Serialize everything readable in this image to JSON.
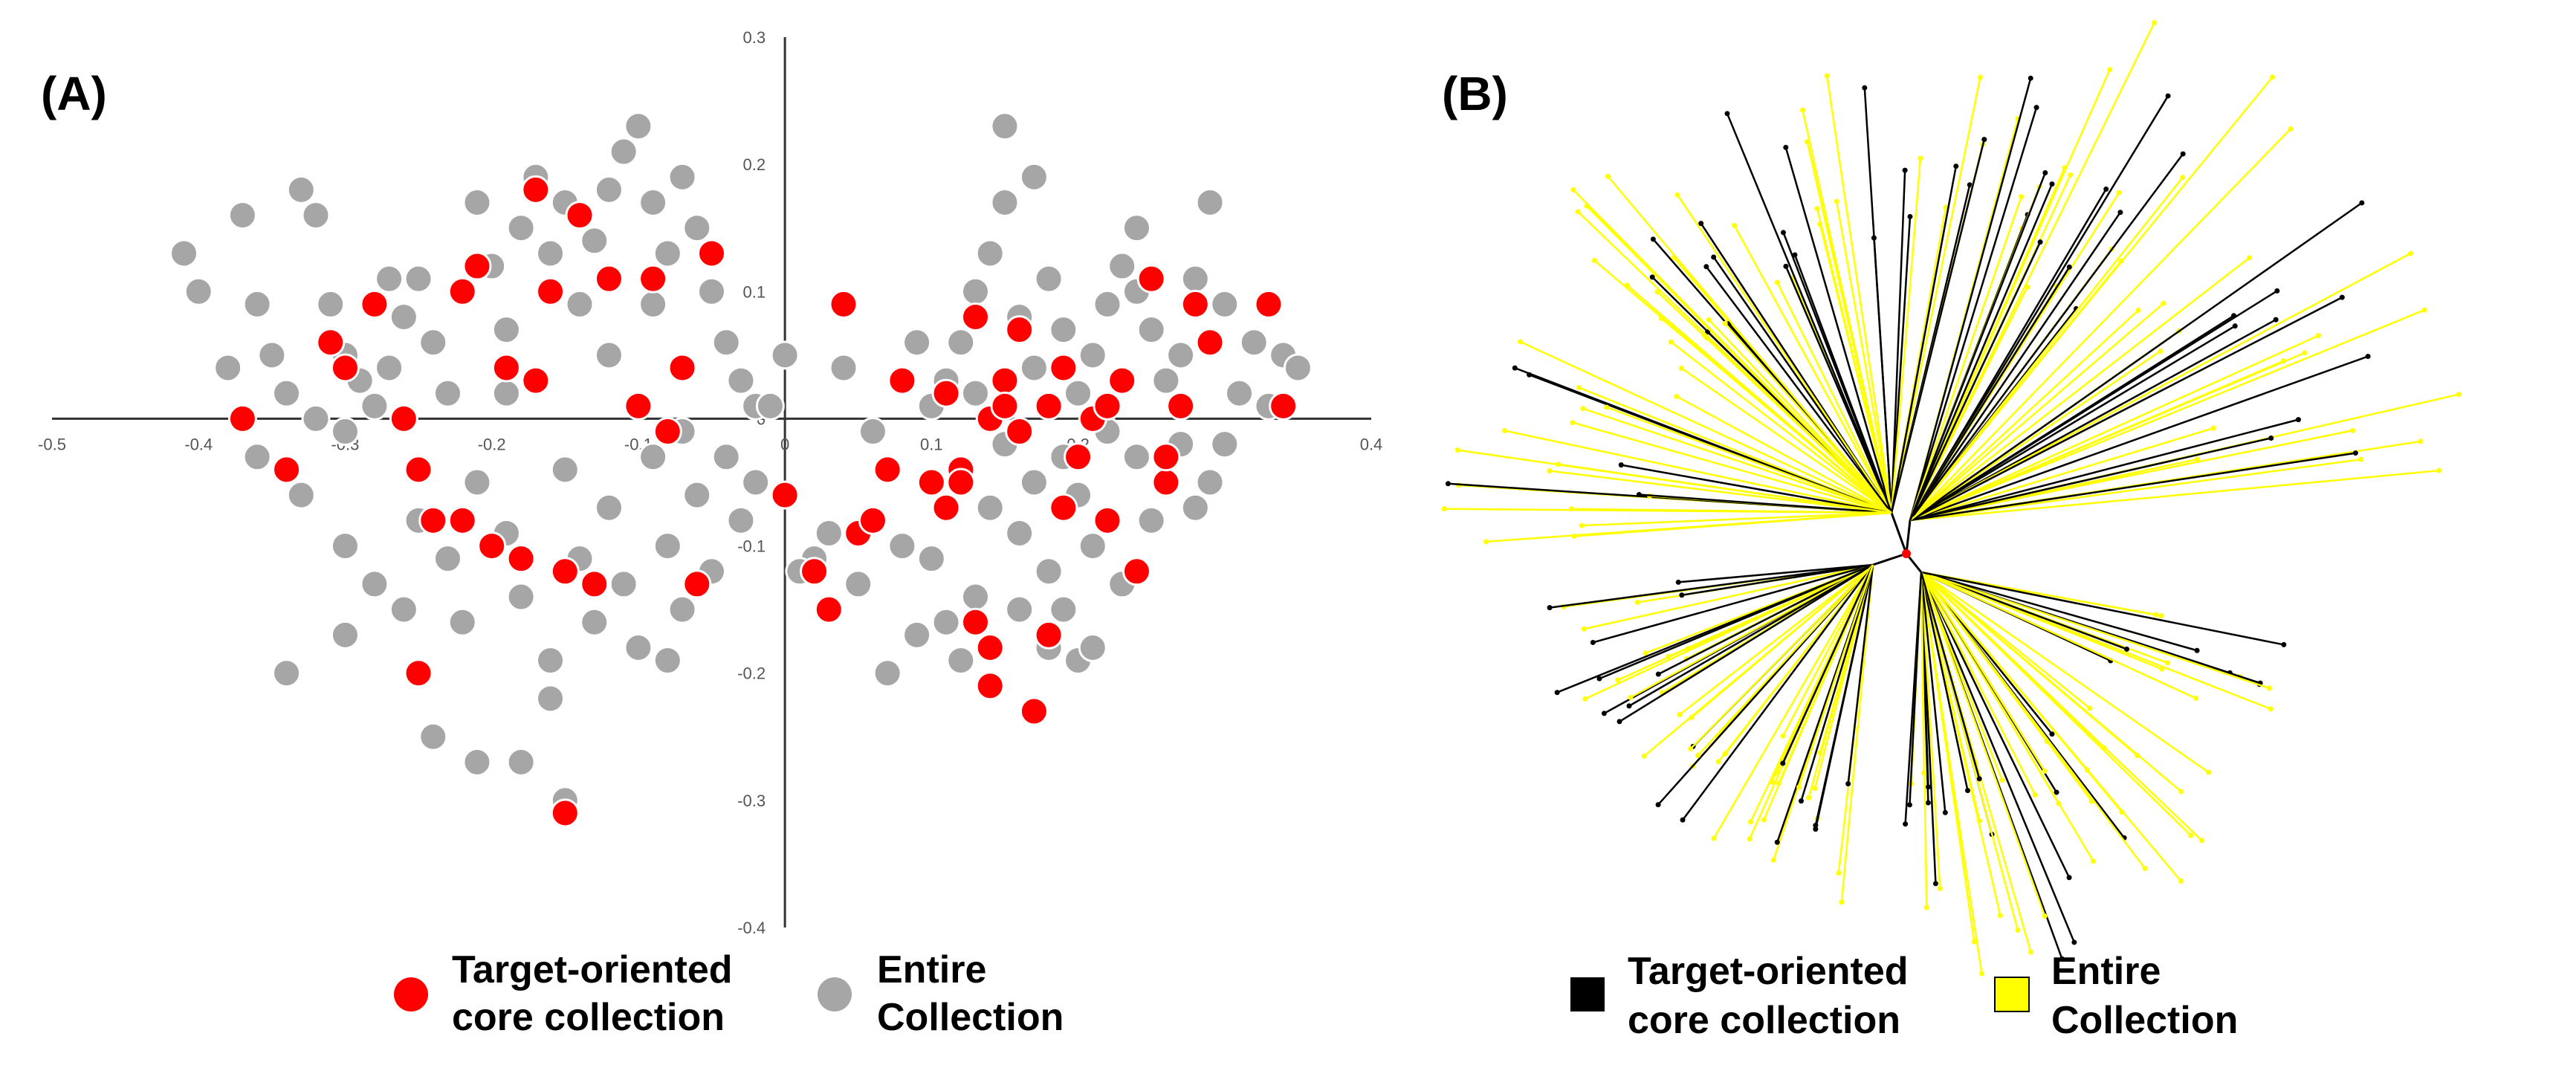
{
  "panels": [
    {
      "label": "(A)"
    },
    {
      "label": "(B)"
    }
  ],
  "chart_data": [
    {
      "type": "scatter",
      "title": "",
      "xlabel": "",
      "ylabel": "",
      "xlim": [
        -0.5,
        0.4
      ],
      "ylim": [
        -0.4,
        0.3
      ],
      "x_ticks": [
        -0.5,
        -0.4,
        -0.3,
        -0.2,
        -0.1,
        0,
        0.1,
        0.2,
        0.3,
        0.4
      ],
      "x_tick_labels": [
        "-0.5",
        "-0.4",
        "-0.3",
        "-0.2",
        "-0.1",
        "0",
        "0.1",
        "0.2",
        "0.3",
        "0.4"
      ],
      "y_ticks": [
        0.3,
        0.2,
        0.1,
        0,
        -0.1,
        -0.2,
        -0.3,
        -0.4
      ],
      "y_tick_labels": [
        "0.3",
        "0.2",
        "0.1",
        "0",
        "-0.1",
        "-0.2",
        "-0.3",
        "-0.4"
      ],
      "grid": false,
      "series": [
        {
          "name": "Entire Collection",
          "color": "#a6a6a6",
          "points": [
            [
              -0.41,
              0.13
            ],
            [
              -0.4,
              0.1
            ],
            [
              -0.37,
              0.16
            ],
            [
              -0.36,
              0.09
            ],
            [
              -0.35,
              0.05
            ],
            [
              -0.33,
              0.18
            ],
            [
              -0.32,
              0.16
            ],
            [
              -0.31,
              0.09
            ],
            [
              -0.3,
              0.05
            ],
            [
              -0.29,
              0.03
            ],
            [
              -0.34,
              0.02
            ],
            [
              -0.32,
              0.0
            ],
            [
              -0.3,
              -0.01
            ],
            [
              -0.28,
              0.01
            ],
            [
              -0.27,
              0.04
            ],
            [
              -0.26,
              0.08
            ],
            [
              -0.25,
              0.11
            ],
            [
              -0.24,
              0.06
            ],
            [
              -0.23,
              0.02
            ],
            [
              -0.22,
              0.1
            ],
            [
              -0.21,
              0.17
            ],
            [
              -0.2,
              0.12
            ],
            [
              -0.19,
              0.07
            ],
            [
              -0.18,
              0.15
            ],
            [
              -0.17,
              0.19
            ],
            [
              -0.16,
              0.13
            ],
            [
              -0.15,
              0.17
            ],
            [
              -0.14,
              0.09
            ],
            [
              -0.13,
              0.14
            ],
            [
              -0.12,
              0.18
            ],
            [
              -0.11,
              0.21
            ],
            [
              -0.1,
              0.23
            ],
            [
              -0.09,
              0.17
            ],
            [
              -0.08,
              0.13
            ],
            [
              -0.07,
              0.19
            ],
            [
              -0.06,
              0.15
            ],
            [
              -0.05,
              0.1
            ],
            [
              -0.04,
              0.06
            ],
            [
              -0.03,
              0.03
            ],
            [
              -0.02,
              0.01
            ],
            [
              -0.36,
              -0.03
            ],
            [
              -0.33,
              -0.06
            ],
            [
              -0.3,
              -0.1
            ],
            [
              -0.28,
              -0.13
            ],
            [
              -0.26,
              -0.15
            ],
            [
              -0.25,
              -0.08
            ],
            [
              -0.23,
              -0.11
            ],
            [
              -0.22,
              -0.16
            ],
            [
              -0.21,
              -0.05
            ],
            [
              -0.19,
              -0.09
            ],
            [
              -0.18,
              -0.14
            ],
            [
              -0.16,
              -0.19
            ],
            [
              -0.15,
              -0.04
            ],
            [
              -0.14,
              -0.11
            ],
            [
              -0.13,
              -0.16
            ],
            [
              -0.12,
              -0.07
            ],
            [
              -0.11,
              -0.13
            ],
            [
              -0.1,
              -0.18
            ],
            [
              -0.09,
              -0.03
            ],
            [
              -0.08,
              -0.1
            ],
            [
              -0.07,
              -0.15
            ],
            [
              -0.06,
              -0.06
            ],
            [
              -0.05,
              -0.12
            ],
            [
              -0.04,
              -0.03
            ],
            [
              -0.03,
              -0.08
            ],
            [
              -0.34,
              -0.2
            ],
            [
              -0.3,
              -0.17
            ],
            [
              -0.24,
              -0.25
            ],
            [
              -0.21,
              -0.27
            ],
            [
              -0.18,
              -0.27
            ],
            [
              -0.16,
              -0.22
            ],
            [
              -0.15,
              -0.3
            ],
            [
              -0.08,
              -0.19
            ],
            [
              -0.38,
              0.04
            ],
            [
              -0.27,
              0.11
            ],
            [
              -0.19,
              0.02
            ],
            [
              -0.12,
              0.05
            ],
            [
              -0.09,
              0.09
            ],
            [
              -0.07,
              -0.01
            ],
            [
              -0.02,
              -0.05
            ],
            [
              0.04,
              0.04
            ],
            [
              0.06,
              -0.01
            ],
            [
              0.07,
              -0.04
            ],
            [
              0.08,
              -0.1
            ],
            [
              0.09,
              -0.17
            ],
            [
              0.1,
              0.01
            ],
            [
              0.11,
              0.03
            ],
            [
              0.12,
              0.06
            ],
            [
              0.13,
              0.1
            ],
            [
              0.14,
              0.13
            ],
            [
              0.15,
              0.17
            ],
            [
              0.15,
              0.23
            ],
            [
              0.16,
              0.08
            ],
            [
              0.17,
              0.04
            ],
            [
              0.17,
              0.19
            ],
            [
              0.18,
              0.11
            ],
            [
              0.19,
              0.07
            ],
            [
              0.2,
              0.02
            ],
            [
              0.21,
              0.05
            ],
            [
              0.22,
              0.09
            ],
            [
              0.23,
              0.12
            ],
            [
              0.24,
              0.15
            ],
            [
              0.25,
              0.07
            ],
            [
              0.26,
              0.03
            ],
            [
              0.27,
              0.05
            ],
            [
              0.28,
              0.11
            ],
            [
              0.29,
              0.17
            ],
            [
              0.3,
              0.09
            ],
            [
              0.31,
              0.02
            ],
            [
              0.32,
              0.06
            ],
            [
              0.33,
              0.01
            ],
            [
              0.34,
              0.05
            ],
            [
              0.35,
              0.04
            ],
            [
              0.12,
              -0.04
            ],
            [
              0.14,
              -0.07
            ],
            [
              0.15,
              -0.02
            ],
            [
              0.16,
              -0.09
            ],
            [
              0.17,
              -0.05
            ],
            [
              0.18,
              -0.12
            ],
            [
              0.19,
              -0.03
            ],
            [
              0.2,
              -0.06
            ],
            [
              0.21,
              -0.1
            ],
            [
              0.22,
              -0.01
            ],
            [
              0.23,
              -0.13
            ],
            [
              0.24,
              -0.03
            ],
            [
              0.25,
              -0.08
            ],
            [
              0.26,
              -0.05
            ],
            [
              0.27,
              -0.02
            ],
            [
              0.28,
              -0.07
            ],
            [
              0.29,
              -0.05
            ],
            [
              0.3,
              -0.02
            ],
            [
              0.1,
              -0.11
            ],
            [
              0.11,
              -0.16
            ],
            [
              0.12,
              -0.19
            ],
            [
              0.13,
              -0.14
            ],
            [
              0.16,
              -0.15
            ],
            [
              0.18,
              -0.18
            ],
            [
              0.19,
              -0.15
            ],
            [
              0.2,
              -0.19
            ],
            [
              0.21,
              -0.18
            ],
            [
              0.07,
              -0.2
            ],
            [
              0.02,
              -0.11
            ],
            [
              0.03,
              -0.09
            ],
            [
              0.05,
              -0.13
            ],
            [
              0.0,
              0.05
            ],
            [
              -0.01,
              0.01
            ],
            [
              0.01,
              -0.12
            ],
            [
              0.09,
              0.06
            ],
            [
              0.13,
              0.02
            ],
            [
              0.24,
              0.1
            ]
          ]
        },
        {
          "name": "Target-oriented core collection",
          "color": "#ff0000",
          "points": [
            [
              -0.37,
              0.0
            ],
            [
              -0.34,
              -0.04
            ],
            [
              -0.31,
              0.06
            ],
            [
              -0.3,
              0.04
            ],
            [
              -0.28,
              0.09
            ],
            [
              -0.26,
              0.0
            ],
            [
              -0.25,
              -0.04
            ],
            [
              -0.25,
              -0.2
            ],
            [
              -0.24,
              -0.08
            ],
            [
              -0.22,
              0.1
            ],
            [
              -0.21,
              0.12
            ],
            [
              -0.2,
              -0.1
            ],
            [
              -0.19,
              0.04
            ],
            [
              -0.18,
              -0.11
            ],
            [
              -0.17,
              0.18
            ],
            [
              -0.17,
              0.03
            ],
            [
              -0.16,
              0.1
            ],
            [
              -0.15,
              -0.12
            ],
            [
              -0.14,
              0.16
            ],
            [
              -0.13,
              -0.13
            ],
            [
              -0.15,
              -0.31
            ],
            [
              -0.12,
              0.11
            ],
            [
              -0.1,
              0.01
            ],
            [
              -0.09,
              0.11
            ],
            [
              -0.08,
              -0.01
            ],
            [
              -0.07,
              0.04
            ],
            [
              -0.06,
              -0.13
            ],
            [
              -0.05,
              0.13
            ],
            [
              0.0,
              -0.06
            ],
            [
              0.02,
              -0.12
            ],
            [
              0.03,
              -0.15
            ],
            [
              0.04,
              0.09
            ],
            [
              0.05,
              -0.09
            ],
            [
              0.06,
              -0.08
            ],
            [
              0.07,
              -0.04
            ],
            [
              0.08,
              0.03
            ],
            [
              0.1,
              -0.05
            ],
            [
              0.11,
              0.02
            ],
            [
              0.12,
              -0.04
            ],
            [
              0.13,
              0.08
            ],
            [
              0.13,
              -0.16
            ],
            [
              0.14,
              -0.18
            ],
            [
              0.14,
              -0.21
            ],
            [
              0.15,
              0.03
            ],
            [
              0.16,
              0.07
            ],
            [
              0.16,
              -0.01
            ],
            [
              0.17,
              -0.23
            ],
            [
              0.18,
              0.01
            ],
            [
              0.18,
              -0.17
            ],
            [
              0.19,
              0.04
            ],
            [
              0.2,
              -0.03
            ],
            [
              0.21,
              0.0
            ],
            [
              0.22,
              -0.08
            ],
            [
              0.23,
              0.03
            ],
            [
              0.24,
              -0.12
            ],
            [
              0.25,
              0.11
            ],
            [
              0.26,
              -0.05
            ],
            [
              0.26,
              -0.03
            ],
            [
              0.27,
              0.01
            ],
            [
              0.28,
              0.09
            ],
            [
              0.29,
              0.06
            ],
            [
              0.33,
              0.09
            ],
            [
              0.34,
              0.01
            ],
            [
              0.14,
              0.0
            ],
            [
              0.11,
              -0.07
            ],
            [
              0.22,
              0.01
            ],
            [
              -0.22,
              -0.08
            ],
            [
              0.12,
              -0.05
            ],
            [
              0.15,
              0.01
            ],
            [
              0.19,
              -0.07
            ]
          ]
        }
      ],
      "legend": {
        "placement": "bottom",
        "entries": [
          {
            "marker": "circle",
            "color": "#ff0000",
            "line1": "Target-oriented",
            "line2": "core collection"
          },
          {
            "marker": "circle",
            "color": "#a6a6a6",
            "line1": "Entire",
            "line2": "Collection"
          }
        ]
      }
    },
    {
      "type": "other",
      "subtype": "unrooted radial tree",
      "title": "",
      "center_marker_color": "#ff0000",
      "clades": [
        {
          "name": "upper-left",
          "color": "#000000"
        },
        {
          "name": "upper-right",
          "color": "#000000"
        },
        {
          "name": "lower-left",
          "color": "#000000"
        },
        {
          "name": "lower-right",
          "color": "#000000"
        }
      ],
      "series": [
        {
          "name": "Target-oriented core collection",
          "color": "#000000"
        },
        {
          "name": "Entire Collection",
          "color": "#ffff00"
        }
      ],
      "legend": {
        "placement": "bottom",
        "entries": [
          {
            "marker": "square",
            "color": "#000000",
            "line1": "Target-oriented",
            "line2": "core collection"
          },
          {
            "marker": "square",
            "color": "#ffff00",
            "line1": "Entire",
            "line2": "Collection"
          }
        ]
      }
    }
  ]
}
